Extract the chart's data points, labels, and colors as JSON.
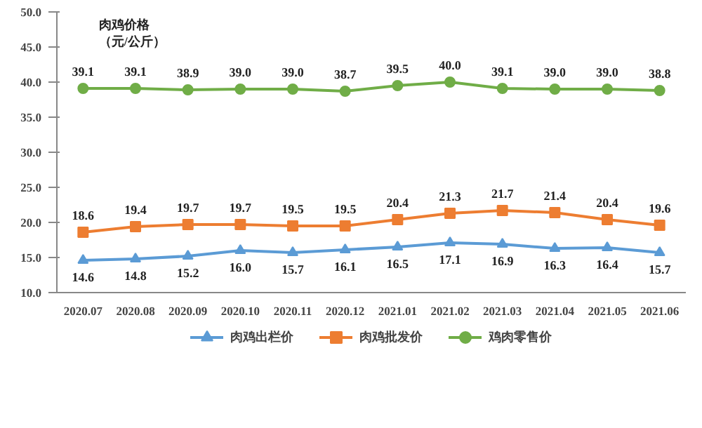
{
  "chart_data": {
    "type": "line",
    "ylabel": "肉鸡价格",
    "annotations": [
      "（元/公斤）"
    ],
    "categories": [
      "2020.07",
      "2020.08",
      "2020.09",
      "2020.10",
      "2020.11",
      "2020.12",
      "2021.01",
      "2021.02",
      "2021.03",
      "2021.04",
      "2021.05",
      "2021.06"
    ],
    "series": [
      {
        "name": "肉鸡出栏价",
        "color": "#5b9bd5",
        "marker": "triangle",
        "values": [
          14.6,
          14.8,
          15.2,
          16.0,
          15.7,
          16.1,
          16.5,
          17.1,
          16.9,
          16.3,
          16.4,
          15.7
        ],
        "value_labels": [
          "14.6",
          "14.8",
          "15.2",
          "16.0",
          "15.7",
          "16.1",
          "16.5",
          "17.1",
          "16.9",
          "16.3",
          "16.4",
          "15.7"
        ]
      },
      {
        "name": "肉鸡批发价",
        "color": "#ed7d31",
        "marker": "square",
        "values": [
          18.6,
          19.4,
          19.7,
          19.7,
          19.5,
          19.5,
          20.4,
          21.3,
          21.7,
          21.4,
          20.4,
          19.6
        ],
        "value_labels": [
          "18.6",
          "19.4",
          "19.7",
          "19.7",
          "19.5",
          "19.5",
          "20.4",
          "21.3",
          "21.7",
          "21.4",
          "20.4",
          "19.6"
        ]
      },
      {
        "name": "鸡肉零售价",
        "color": "#70ad47",
        "marker": "circle",
        "values": [
          39.1,
          39.1,
          38.9,
          39.0,
          39.0,
          38.7,
          39.5,
          40.0,
          39.1,
          39.0,
          39.0,
          38.8
        ],
        "value_labels": [
          "39.1",
          "39.1",
          "38.9",
          "39.0",
          "39.0",
          "38.7",
          "39.5",
          "40.0",
          "39.1",
          "39.0",
          "39.0",
          "38.8"
        ]
      }
    ],
    "ylim": [
      10,
      50
    ],
    "yticks": [
      {
        "value": 10,
        "label": "10.0"
      },
      {
        "value": 15,
        "label": "15.0"
      },
      {
        "value": 20,
        "label": "20.0"
      },
      {
        "value": 25,
        "label": "25.0"
      },
      {
        "value": 30,
        "label": "30.0"
      },
      {
        "value": 35,
        "label": "35.0"
      },
      {
        "value": 40,
        "label": "40.0"
      },
      {
        "value": 45,
        "label": "45.0"
      },
      {
        "value": 50,
        "label": "50.0"
      }
    ],
    "legend": "bottom",
    "line_style": "solid"
  }
}
